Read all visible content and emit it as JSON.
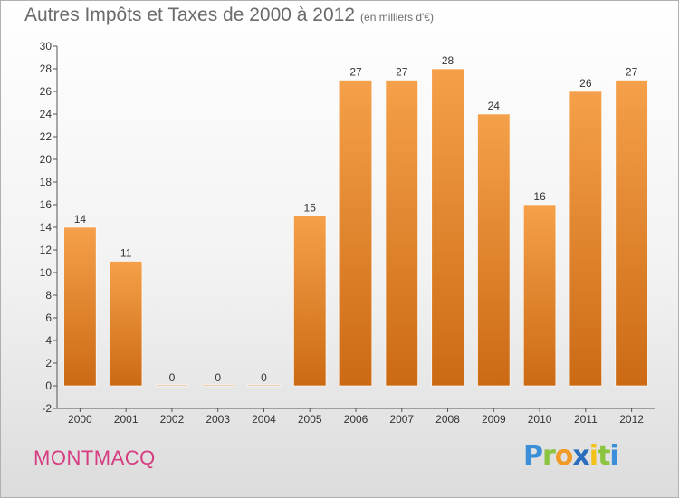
{
  "title": "Autres Impôts et Taxes de 2000 à 2012",
  "unit_note": "(en milliers d'€)",
  "city": "MONTMACQ",
  "logo": {
    "letters": [
      "P",
      "r",
      "o",
      "x",
      "i",
      "t",
      "i"
    ],
    "colors": [
      "#3a8fd8",
      "#8bc43f",
      "#f29a26",
      "#2a6ebd",
      "#f2c21b",
      "#8bc43f",
      "#3a8fd8"
    ]
  },
  "chart_data": {
    "type": "bar",
    "title": "Autres Impôts et Taxes de 2000 à 2012",
    "xlabel": "",
    "ylabel": "",
    "categories": [
      "2000",
      "2001",
      "2002",
      "2003",
      "2004",
      "2005",
      "2006",
      "2007",
      "2008",
      "2009",
      "2010",
      "2011",
      "2012"
    ],
    "values": [
      14,
      11,
      0,
      0,
      0,
      15,
      27,
      27,
      28,
      24,
      16,
      26,
      27
    ],
    "ylim": [
      -2,
      30
    ],
    "yticks": [
      -2,
      0,
      2,
      4,
      6,
      8,
      10,
      12,
      14,
      16,
      18,
      20,
      22,
      24,
      26,
      28,
      30
    ],
    "grid": false,
    "bar_color": "#f5a04a",
    "bar_color_dark": "#cc6a14"
  }
}
